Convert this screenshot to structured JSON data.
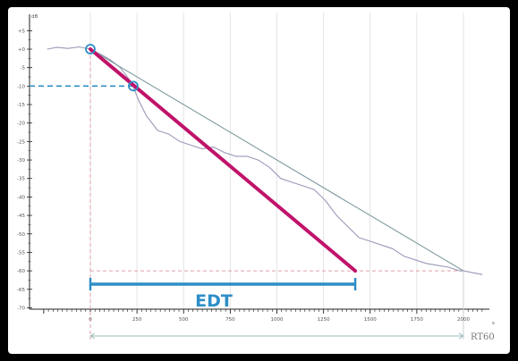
{
  "chart_data": {
    "type": "line",
    "title": "",
    "y_unit": "dB",
    "x_unit": "s",
    "xlim": [
      -250,
      2100
    ],
    "ylim": [
      -70,
      10
    ],
    "x_ticks": [
      0,
      250,
      500,
      750,
      1000,
      1250,
      1500,
      1750,
      2000
    ],
    "x_tick_labels": [
      "0",
      "250",
      "500",
      "750",
      "1000",
      "1250",
      "1500",
      "1750",
      "2000"
    ],
    "y_ticks": [
      5,
      0,
      -5,
      -10,
      -15,
      -20,
      -25,
      -30,
      -35,
      -40,
      -45,
      -50,
      -55,
      -60,
      -65,
      -70
    ],
    "y_tick_labels": [
      "+5",
      "+0",
      "-5",
      "-10",
      "-15",
      "-20",
      "-25",
      "-30",
      "-35",
      "-40",
      "-45",
      "-50",
      "-55",
      "-60",
      "-65",
      "-70"
    ],
    "grid": true,
    "series": [
      {
        "role": "decay_curve",
        "color": "#9a98b8",
        "x": [
          -230,
          -180,
          -120,
          -60,
          0,
          60,
          110,
          160,
          220,
          260,
          300,
          360,
          420,
          480,
          540,
          600,
          660,
          720,
          780,
          840,
          900,
          960,
          1020,
          1080,
          1140,
          1200,
          1260,
          1320,
          1380,
          1440,
          1500,
          1560,
          1620,
          1680,
          1740,
          1800,
          1860,
          1920,
          1980,
          2000,
          2050,
          2100
        ],
        "y": [
          0,
          0.5,
          0.2,
          0.6,
          0,
          -1.5,
          -3,
          -5,
          -9,
          -14,
          -18,
          -22,
          -23,
          -25,
          -26,
          -27,
          -26.5,
          -28,
          -29,
          -29,
          -30,
          -32,
          -35,
          -36,
          -37,
          -38,
          -41,
          -45,
          -48,
          -51,
          -52,
          -53,
          -54,
          -56,
          -57,
          -58,
          -58.5,
          -59,
          -60,
          -60,
          -60.5,
          -61
        ]
      },
      {
        "role": "rt60_line",
        "color": "#7f9a9e",
        "x": [
          0,
          2000
        ],
        "y": [
          0,
          -60
        ]
      },
      {
        "role": "edt_line",
        "color": "#c0136a",
        "x": [
          0,
          1420
        ],
        "y": [
          0,
          -60
        ]
      }
    ],
    "markers": [
      {
        "x": 0,
        "y": 0,
        "color": "#2d8ec7"
      },
      {
        "x": 230,
        "y": -10,
        "color": "#2d8ec7"
      }
    ],
    "reference_lines": [
      {
        "orientation": "horizontal",
        "value": -10,
        "to_x": 230,
        "style": "dashed",
        "color": "#2d8ec7"
      },
      {
        "orientation": "vertical",
        "value": 0,
        "style": "dashed",
        "color": "#e0a0a8"
      },
      {
        "orientation": "horizontal",
        "value": -60,
        "from_x": 0,
        "to_x": 2000,
        "style": "dashed",
        "color": "#e0a0a8"
      }
    ],
    "intervals": [
      {
        "label": "EDT",
        "start": 0,
        "end": 1420,
        "color": "#2d8ec7"
      },
      {
        "label": "RT60",
        "start": 0,
        "end": 2000,
        "color": "#9ab8b8"
      }
    ]
  }
}
